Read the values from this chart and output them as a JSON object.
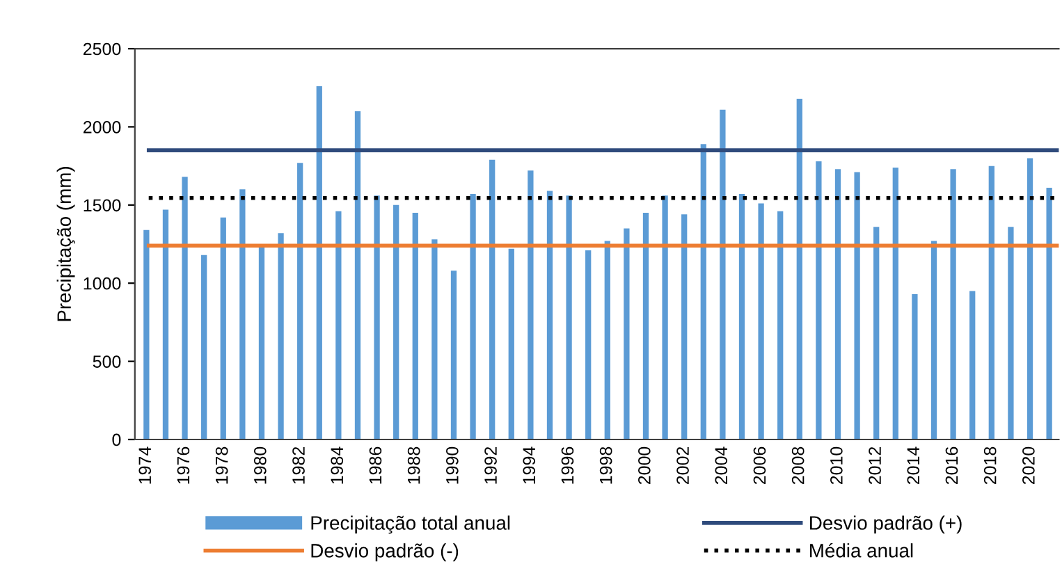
{
  "chart_data": {
    "type": "bar",
    "ylabel": "Precipitação (mm)",
    "categories": [
      "1974",
      null,
      "1976",
      null,
      "1978",
      null,
      "1980",
      null,
      "1982",
      null,
      "1984",
      null,
      "1986",
      null,
      "1988",
      null,
      "1990",
      null,
      "1992",
      null,
      "1994",
      null,
      "1996",
      null,
      "1998",
      null,
      "2000",
      null,
      "2002",
      null,
      "2004",
      null,
      "2006",
      null,
      "2008",
      null,
      "2010",
      null,
      "2012",
      null,
      "2014",
      null,
      "2016",
      null,
      "2018",
      null,
      "2020",
      null
    ],
    "series": [
      {
        "name": "Precipitação total anual",
        "color": "#5b9bd5",
        "values": [
          1340,
          1470,
          1680,
          1180,
          1420,
          1600,
          1250,
          1320,
          1770,
          2260,
          1460,
          2100,
          1560,
          1500,
          1450,
          1280,
          1080,
          1570,
          1790,
          1220,
          1720,
          1590,
          1560,
          1210,
          1270,
          1350,
          1450,
          1560,
          1440,
          1890,
          2110,
          1570,
          1510,
          1460,
          2180,
          1780,
          1730,
          1710,
          1360,
          1740,
          930,
          1270,
          1730,
          950,
          1750,
          1360,
          1800,
          1610
        ]
      }
    ],
    "ref_lines": [
      {
        "axis": "y",
        "value": 1850,
        "label": "Desvio padrão (+)",
        "color": "#2f4b7c",
        "line_style": "solid"
      },
      {
        "axis": "y",
        "value": 1240,
        "label": "Desvio padrão (-)",
        "color": "#ed7d31",
        "line_style": "solid"
      },
      {
        "axis": "y",
        "value": 1545,
        "label": "Média anual",
        "color": "#000000",
        "line_style": "dotted"
      }
    ],
    "ylim": [
      0,
      2500
    ],
    "yticks": [
      0,
      500,
      1000,
      1500,
      2000,
      2500
    ],
    "grid": false,
    "legend": "bottom"
  }
}
